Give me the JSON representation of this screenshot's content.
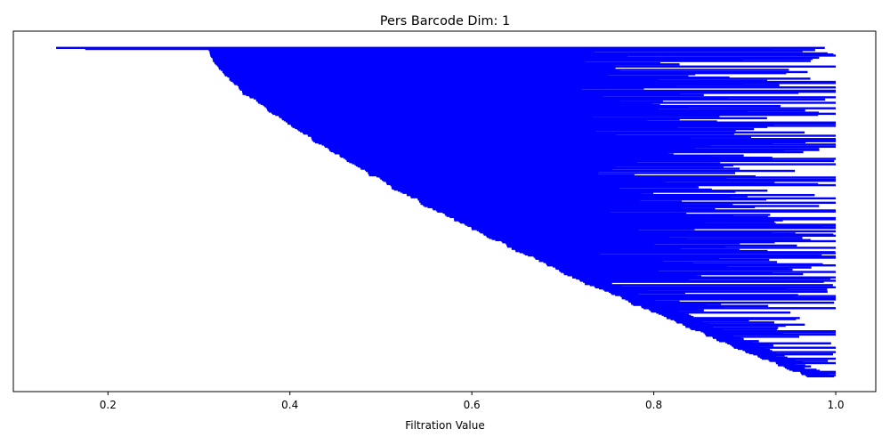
{
  "chart_data": {
    "type": "barcode",
    "title": "Pers Barcode Dim: 1",
    "xlabel": "Filtration Value",
    "ylabel": "",
    "xlim": [
      0.096,
      1.044
    ],
    "x_ticks": [
      "0.2",
      "0.4",
      "0.6",
      "0.8",
      "1.0"
    ],
    "x_tick_values": [
      0.2,
      0.4,
      0.6,
      0.8,
      1.0
    ],
    "bar_color": "#0000ff",
    "y_ticks_shown": false,
    "grid": false,
    "legend": "none",
    "bar_count_approx": 300,
    "intervals": [
      {
        "birth": 0.143,
        "death": 0.988
      },
      {
        "birth": 0.175,
        "death": 0.931
      },
      {
        "birth": 0.31,
        "death": 0.983
      },
      {
        "birth": 0.33,
        "death": 0.962
      },
      {
        "birth": 0.355,
        "death": 0.86
      },
      {
        "birth": 0.37,
        "death": 0.87
      },
      {
        "birth": 0.38,
        "death": 0.93
      },
      {
        "birth": 0.39,
        "death": 0.9
      },
      {
        "birth": 0.405,
        "death": 0.95
      },
      {
        "birth": 0.42,
        "death": 0.89
      },
      {
        "birth": 0.43,
        "death": 0.98
      },
      {
        "birth": 0.445,
        "death": 0.88
      },
      {
        "birth": 0.46,
        "death": 0.92
      },
      {
        "birth": 0.475,
        "death": 0.99
      },
      {
        "birth": 0.49,
        "death": 0.85
      },
      {
        "birth": 0.505,
        "death": 0.94
      },
      {
        "birth": 0.52,
        "death": 0.87
      },
      {
        "birth": 0.535,
        "death": 0.93
      },
      {
        "birth": 0.55,
        "death": 0.9
      },
      {
        "birth": 0.565,
        "death": 0.98
      },
      {
        "birth": 0.58,
        "death": 0.88
      },
      {
        "birth": 0.595,
        "death": 0.95
      },
      {
        "birth": 0.61,
        "death": 0.92
      },
      {
        "birth": 0.625,
        "death": 0.99
      },
      {
        "birth": 0.64,
        "death": 0.94
      },
      {
        "birth": 0.66,
        "death": 1.0
      },
      {
        "birth": 0.68,
        "death": 0.97
      },
      {
        "birth": 0.7,
        "death": 0.99
      },
      {
        "birth": 0.72,
        "death": 1.0
      },
      {
        "birth": 0.74,
        "death": 0.98
      },
      {
        "birth": 0.76,
        "death": 1.0
      },
      {
        "birth": 0.79,
        "death": 0.99
      },
      {
        "birth": 0.82,
        "death": 1.0
      },
      {
        "birth": 0.86,
        "death": 1.0
      },
      {
        "birth": 0.9,
        "death": 1.0
      },
      {
        "birth": 0.94,
        "death": 1.0
      }
    ]
  }
}
